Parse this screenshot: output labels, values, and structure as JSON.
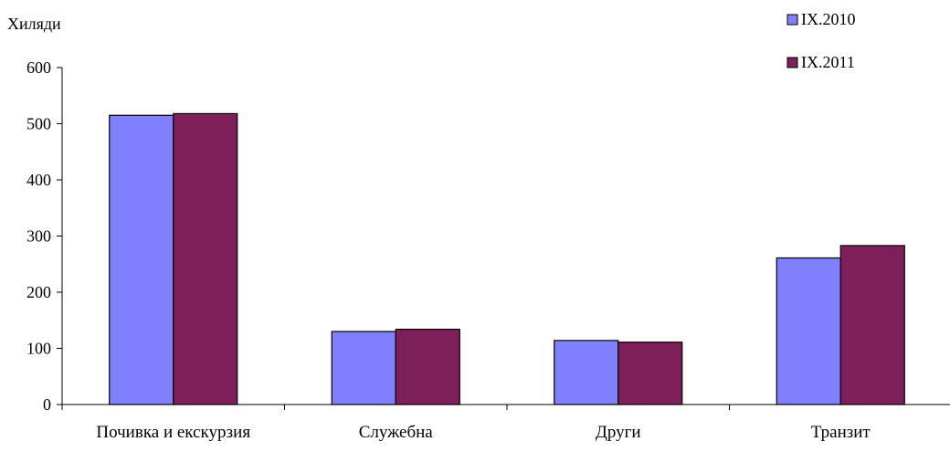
{
  "chart_data": {
    "type": "bar",
    "ylabel": "Хиляди",
    "categories": [
      "Почивка и екскурзия",
      "Служебна",
      "Други",
      "Транзит"
    ],
    "series": [
      {
        "name": "IX.2010",
        "color": "#8080FF",
        "values": [
          515,
          130,
          114,
          261
        ]
      },
      {
        "name": "IX.2011",
        "color": "#7F1F5A",
        "values": [
          518,
          134,
          111,
          283
        ]
      }
    ],
    "ylim": [
      0,
      600
    ],
    "yticks": [
      0,
      100,
      200,
      300,
      400,
      500,
      600
    ],
    "grid": false,
    "legend_position": "top-right"
  }
}
